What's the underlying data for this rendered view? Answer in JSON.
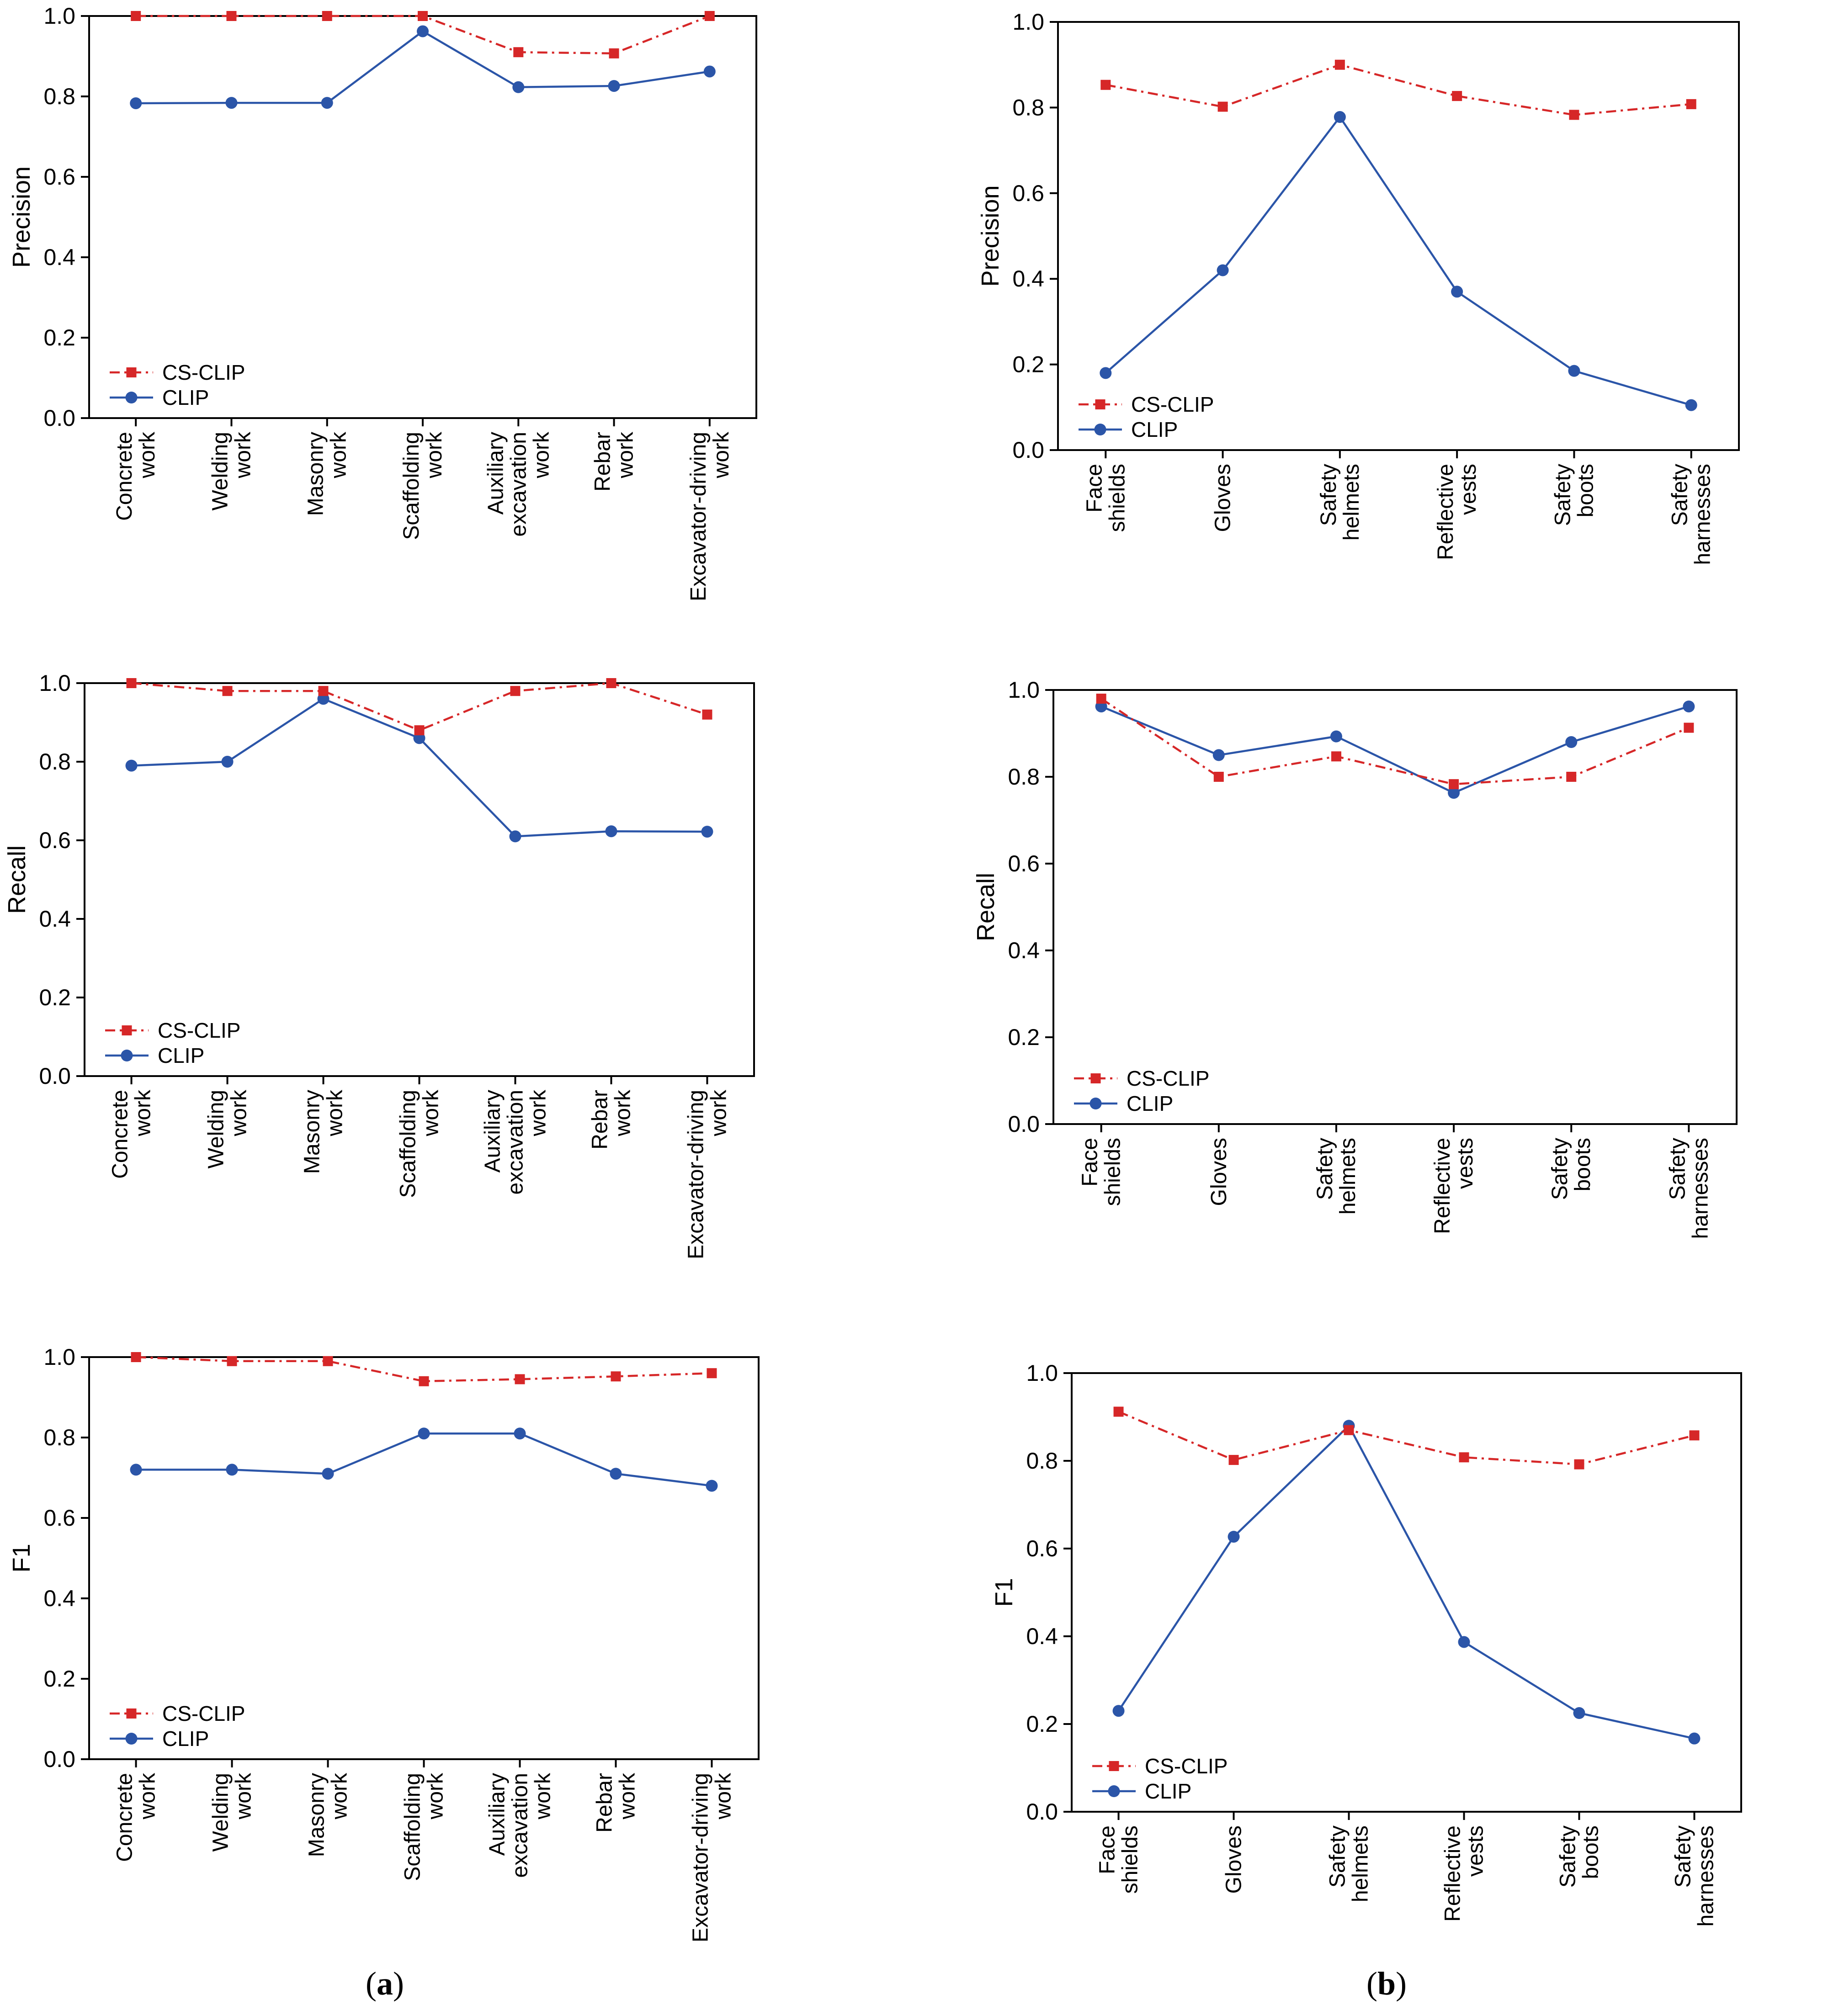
{
  "panel_labels": [
    {
      "open": "(",
      "letter": "a",
      "close": ")"
    },
    {
      "open": "(",
      "letter": "b",
      "close": ")"
    }
  ],
  "colors": {
    "cs_clip": "#d62728",
    "clip": "#2b55a8",
    "axis": "#000000"
  },
  "chart_data": [
    {
      "type": "line",
      "panel": "a",
      "ylabel": "Precision",
      "ylim": [
        0,
        1.0
      ],
      "yticks": [
        "0.0",
        "0.2",
        "0.4",
        "0.6",
        "0.8",
        "1.0"
      ],
      "categories": [
        [
          "Concrete",
          "work"
        ],
        [
          "Welding",
          "work"
        ],
        [
          "Masonry",
          "work"
        ],
        [
          "Scaffolding",
          "work"
        ],
        [
          "Auxiliary",
          "excavation",
          "work"
        ],
        [
          "Rebar",
          "work"
        ],
        [
          "Excavator-driving",
          "work"
        ]
      ],
      "legend_position": "lower-left",
      "series": [
        {
          "name": "CS-CLIP",
          "style": "dashdot-square",
          "color": "#d62728",
          "values": [
            1.0,
            1.0,
            1.0,
            1.0,
            0.91,
            0.907,
            1.0
          ]
        },
        {
          "name": "CLIP",
          "style": "solid-circle",
          "color": "#2b55a8",
          "values": [
            0.783,
            0.784,
            0.784,
            0.962,
            0.823,
            0.826,
            0.862
          ]
        }
      ]
    },
    {
      "type": "line",
      "panel": "b",
      "ylabel": "Precision",
      "ylim": [
        0,
        1.0
      ],
      "yticks": [
        "0.0",
        "0.2",
        "0.4",
        "0.6",
        "0.8",
        "1.0"
      ],
      "categories": [
        [
          "Face",
          "shields"
        ],
        [
          "Gloves"
        ],
        [
          "Safety",
          "helmets"
        ],
        [
          "Reflective",
          "vests"
        ],
        [
          "Safety",
          "boots"
        ],
        [
          "Safety",
          "harnesses"
        ]
      ],
      "legend_position": "lower-left",
      "series": [
        {
          "name": "CS-CLIP",
          "style": "dashdot-square",
          "color": "#d62728",
          "values": [
            0.853,
            0.802,
            0.9,
            0.827,
            0.783,
            0.808
          ]
        },
        {
          "name": "CLIP",
          "style": "solid-circle",
          "color": "#2b55a8",
          "values": [
            0.18,
            0.42,
            0.778,
            0.37,
            0.185,
            0.105
          ]
        }
      ]
    },
    {
      "type": "line",
      "panel": "a",
      "ylabel": "Recall",
      "ylim": [
        0,
        1.0
      ],
      "yticks": [
        "0.0",
        "0.2",
        "0.4",
        "0.6",
        "0.8",
        "1.0"
      ],
      "categories": [
        [
          "Concrete",
          "work"
        ],
        [
          "Welding",
          "work"
        ],
        [
          "Masonry",
          "work"
        ],
        [
          "Scaffolding",
          "work"
        ],
        [
          "Auxiliary",
          "excavation",
          "work"
        ],
        [
          "Rebar",
          "work"
        ],
        [
          "Excavator-driving",
          "work"
        ]
      ],
      "legend_position": "lower-left",
      "series": [
        {
          "name": "CS-CLIP",
          "style": "dashdot-square",
          "color": "#d62728",
          "values": [
            1.0,
            0.98,
            0.98,
            0.88,
            0.98,
            1.0,
            0.92
          ]
        },
        {
          "name": "CLIP",
          "style": "solid-circle",
          "color": "#2b55a8",
          "values": [
            0.79,
            0.8,
            0.96,
            0.86,
            0.61,
            0.623,
            0.622
          ]
        }
      ]
    },
    {
      "type": "line",
      "panel": "b",
      "ylabel": "Recall",
      "ylim": [
        0,
        1.0
      ],
      "yticks": [
        "0.0",
        "0.2",
        "0.4",
        "0.6",
        "0.8",
        "1.0"
      ],
      "categories": [
        [
          "Face",
          "shields"
        ],
        [
          "Gloves"
        ],
        [
          "Safety",
          "helmets"
        ],
        [
          "Reflective",
          "vests"
        ],
        [
          "Safety",
          "boots"
        ],
        [
          "Safety",
          "harnesses"
        ]
      ],
      "legend_position": "lower-left",
      "series": [
        {
          "name": "CS-CLIP",
          "style": "dashdot-square",
          "color": "#d62728",
          "values": [
            0.98,
            0.8,
            0.847,
            0.783,
            0.8,
            0.913
          ]
        },
        {
          "name": "CLIP",
          "style": "solid-circle",
          "color": "#2b55a8",
          "values": [
            0.962,
            0.85,
            0.893,
            0.763,
            0.88,
            0.962
          ]
        }
      ]
    },
    {
      "type": "line",
      "panel": "a",
      "ylabel": "F1",
      "ylim": [
        0,
        1.0
      ],
      "yticks": [
        "0.0",
        "0.2",
        "0.4",
        "0.6",
        "0.8",
        "1.0"
      ],
      "categories": [
        [
          "Concrete",
          "work"
        ],
        [
          "Welding",
          "work"
        ],
        [
          "Masonry",
          "work"
        ],
        [
          "Scaffolding",
          "work"
        ],
        [
          "Auxiliary",
          "excavation",
          "work"
        ],
        [
          "Rebar",
          "work"
        ],
        [
          "Excavator-driving",
          "work"
        ]
      ],
      "legend_position": "lower-left",
      "series": [
        {
          "name": "CS-CLIP",
          "style": "dashdot-square",
          "color": "#d62728",
          "values": [
            1.0,
            0.99,
            0.99,
            0.94,
            0.945,
            0.952,
            0.96
          ]
        },
        {
          "name": "CLIP",
          "style": "solid-circle",
          "color": "#2b55a8",
          "values": [
            0.72,
            0.72,
            0.71,
            0.81,
            0.81,
            0.71,
            0.68
          ]
        }
      ]
    },
    {
      "type": "line",
      "panel": "b",
      "ylabel": "F1",
      "ylim": [
        0,
        1.0
      ],
      "yticks": [
        "0.0",
        "0.2",
        "0.4",
        "0.6",
        "0.8",
        "1.0"
      ],
      "categories": [
        [
          "Face",
          "shields"
        ],
        [
          "Gloves"
        ],
        [
          "Safety",
          "helmets"
        ],
        [
          "Reflective",
          "vests"
        ],
        [
          "Safety",
          "boots"
        ],
        [
          "Safety",
          "harnesses"
        ]
      ],
      "legend_position": "lower-left",
      "series": [
        {
          "name": "CS-CLIP",
          "style": "dashdot-square",
          "color": "#d62728",
          "values": [
            0.912,
            0.802,
            0.87,
            0.808,
            0.792,
            0.858
          ]
        },
        {
          "name": "CLIP",
          "style": "solid-circle",
          "color": "#2b55a8",
          "values": [
            0.23,
            0.627,
            0.88,
            0.387,
            0.225,
            0.167
          ]
        }
      ]
    }
  ]
}
